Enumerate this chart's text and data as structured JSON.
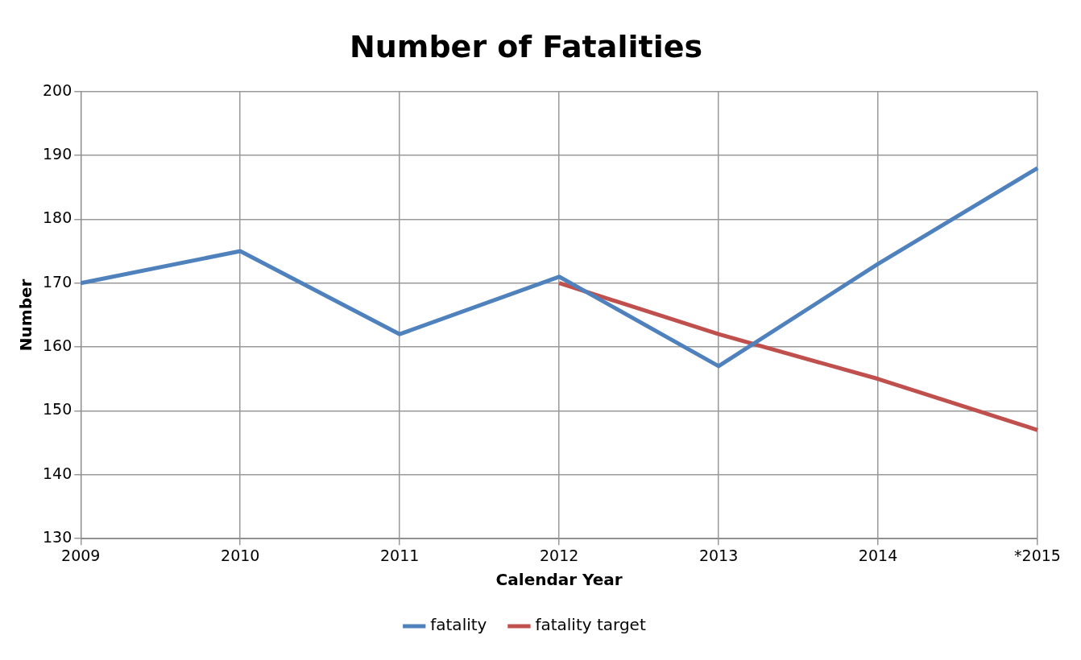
{
  "chart_data": {
    "type": "line",
    "title": "Number of Fatalities",
    "xlabel": "Calendar Year",
    "ylabel": "Number",
    "categories": [
      "2009",
      "2010",
      "2011",
      "2012",
      "2013",
      "2014",
      "*2015"
    ],
    "series": [
      {
        "name": "fatality",
        "color": "#4f81bd",
        "values": [
          170,
          175,
          162,
          171,
          157,
          173,
          188
        ]
      },
      {
        "name": "fatality target",
        "color": "#c0504d",
        "values": [
          null,
          null,
          null,
          170,
          162,
          155,
          147
        ]
      }
    ],
    "ylim": [
      130,
      200
    ],
    "yticks": [
      130,
      140,
      150,
      160,
      170,
      180,
      190,
      200
    ],
    "grid": true,
    "legend": "bottom",
    "marker": "none"
  }
}
